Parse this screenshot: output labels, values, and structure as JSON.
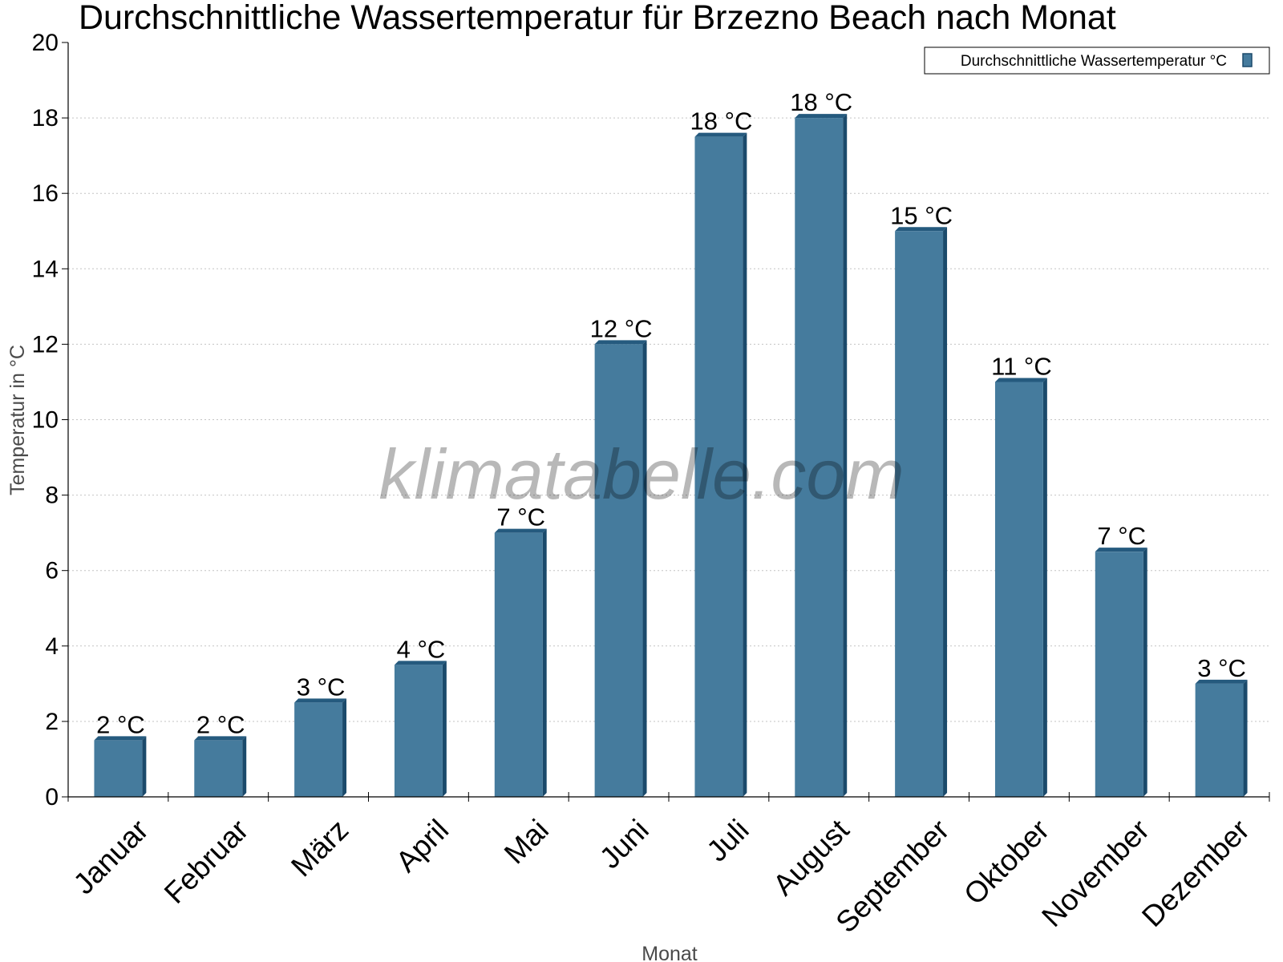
{
  "chart_data": {
    "type": "bar",
    "title": "Durchschnittliche Wassertemperatur für Brzezno Beach nach Monat",
    "xlabel": "Monat",
    "ylabel": "Temperatur in °C",
    "ylim": [
      0,
      20
    ],
    "yticks": [
      "0",
      "2",
      "4",
      "6",
      "8",
      "10",
      "12",
      "14",
      "16",
      "18",
      "20"
    ],
    "grid": true,
    "legend_position": "top-right",
    "categories": [
      "Januar",
      "Februar",
      "März",
      "April",
      "Mai",
      "Juni",
      "Juli",
      "August",
      "September",
      "Oktober",
      "November",
      "Dezember"
    ],
    "series": [
      {
        "name": "Durchschnittliche Wassertemperatur °C",
        "color": "#457b9d",
        "values": [
          1.5,
          1.5,
          2.5,
          3.5,
          7,
          12,
          17.5,
          18,
          15,
          11,
          6.5,
          3
        ],
        "data_labels": [
          "2 °C",
          "2 °C",
          "3 °C",
          "4 °C",
          "7 °C",
          "12 °C",
          "18 °C",
          "18 °C",
          "15 °C",
          "11 °C",
          "7 °C",
          "3 °C"
        ]
      }
    ],
    "watermark": "klimatabelle.com"
  }
}
